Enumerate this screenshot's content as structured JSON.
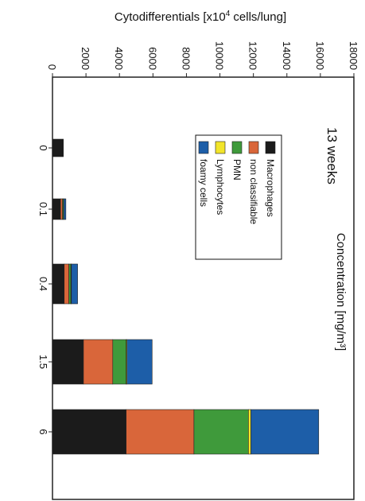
{
  "chart_data": {
    "type": "bar",
    "stacked": true,
    "orientation": "horizontal",
    "rotated_page": true,
    "annotation": "13 weeks",
    "xlabel": "Concentration [mg/m³]",
    "ylabel_prefix": "Cytodifferentials [x10",
    "ylabel_sup": "4",
    "ylabel_suffix": " cells/lung]",
    "ylim": [
      0,
      18000
    ],
    "yticks": [
      "0",
      "2000",
      "4000",
      "6000",
      "8000",
      "10000",
      "12000",
      "14000",
      "16000",
      "18000"
    ],
    "categories": [
      "0",
      "0.1",
      "0.4",
      "1.5",
      "6"
    ],
    "series": [
      {
        "name": "Macrophages",
        "color": "#1b1b1b",
        "values": [
          650,
          480,
          700,
          1850,
          4400
        ]
      },
      {
        "name": "non classifiable",
        "color": "#d9663a",
        "values": [
          0,
          120,
          280,
          1750,
          4050
        ]
      },
      {
        "name": "PMN",
        "color": "#3f9a3b",
        "values": [
          0,
          60,
          120,
          800,
          3250
        ]
      },
      {
        "name": "Lymphocytes",
        "color": "#f2e52a",
        "values": [
          0,
          20,
          30,
          50,
          150
        ]
      },
      {
        "name": "foamy cells",
        "color": "#1d5ea8",
        "values": [
          0,
          120,
          370,
          1500,
          4050
        ]
      }
    ],
    "legend_position": "upper-center",
    "grid": false
  }
}
